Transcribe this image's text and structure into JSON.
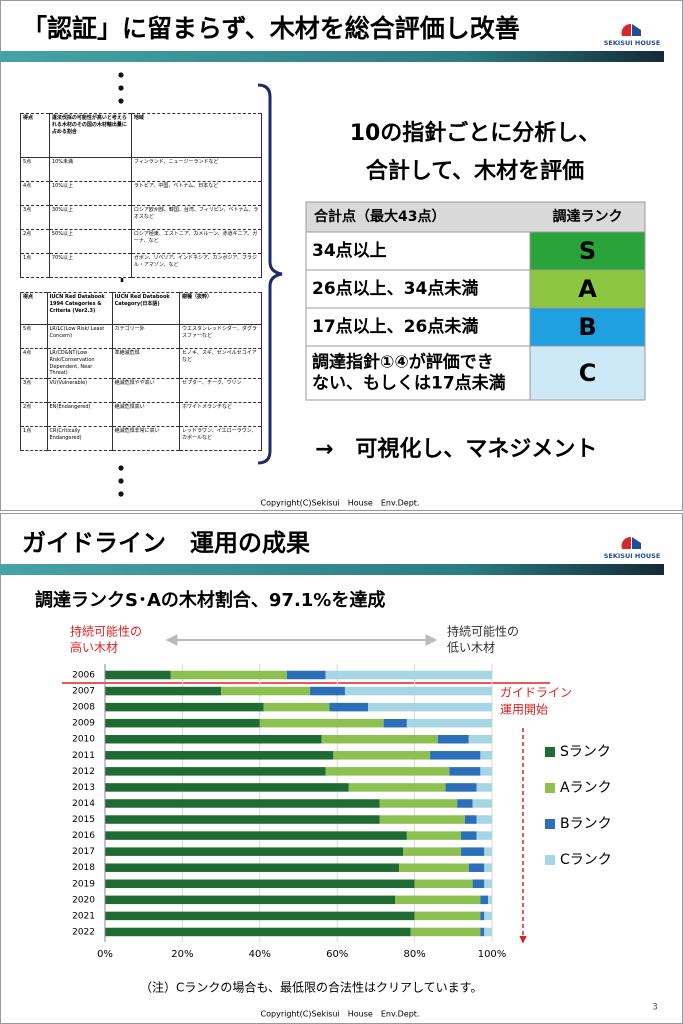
{
  "slide1": {
    "title": "「認証」に留まらず、木材を総合評価し改善",
    "logo": "SEKISUI HOUSE",
    "table1": {
      "header": [
        "得点",
        "違法伐採の可能性が高いと考えられる木材のその国の木材輸出量に占める割合",
        "地域"
      ],
      "rows": [
        [
          "5点",
          "10%未満",
          "フィンランド、ニュージーランドなど"
        ],
        [
          "4点",
          "10%以上",
          "ラトビア、中国、ベトナム、日本など"
        ],
        [
          "3点",
          "30%以上",
          "ロシア欧州部、韓国、台湾、フィリピン、ベトナム、ラオスなど"
        ],
        [
          "2点",
          "50%以上",
          "ロシア極東、エストニア、カメルーン、赤道ギニア、ガーナ、など"
        ],
        [
          "1点",
          "70%以上",
          "ガボン、リベリア、インドネシア、カンボジア、ブラジル・アマゾン、など"
        ]
      ]
    },
    "table2": {
      "header": [
        "得点",
        "IUCN Red Databook 1994 Categories & Criteria (Ver2.3)",
        "IUCN Red Databook Category(日本語)",
        "樹種（抜粋）"
      ],
      "rows": [
        [
          "5点",
          "LR/LC(Low Risk/ Least Concern)",
          "カテゴリー外",
          "ウエスタンレッドシダー、ダグラスファーなど"
        ],
        [
          "4点",
          "LR/CD&NT(Low Risk/Conservation Dependent, Near Threat)",
          "準絶滅危惧",
          "ヒノキ、スギ、センペルセコイアなど"
        ],
        [
          "3点",
          "VU(Vulnerable)",
          "絶滅危惧やや高い",
          "セプター、チーク、ウリン"
        ],
        [
          "2点",
          "EN(Endangered)",
          "絶滅危惧高い",
          "ホワイトメランチなど"
        ],
        [
          "1点",
          "CR(Critically Endangered)",
          "絶滅危惧非常に高い",
          "レッドラワン、イエローラワン、カポールなど"
        ]
      ]
    },
    "heading": [
      "10の指針ごとに分析し、",
      "合計して、木材を評価"
    ],
    "rank_table": {
      "header": [
        "合計点（最大43点）",
        "調達ランク"
      ],
      "rows": [
        {
          "condition": [
            "34点以上"
          ],
          "rank": "S",
          "color": "#2aa33b"
        },
        {
          "condition": [
            "26点以上、34点未満"
          ],
          "rank": "A",
          "color": "#8dc641"
        },
        {
          "condition": [
            "17点以上、26点未満"
          ],
          "rank": "B",
          "color": "#1fa0e0"
        },
        {
          "condition": [
            "調達指針①④が評価でき",
            "ない、もしくは17点未満"
          ],
          "rank": "C",
          "color": "#cde9f7"
        }
      ]
    },
    "conclusion": "→　可視化し、マネジメント",
    "copyright": "Copyright(C)Sekisui　House　Env.Dept."
  },
  "slide2": {
    "title": "ガイドライン　運用の成果",
    "logo": "SEKISUI HOUSE",
    "copyright": "Copyright(C)Sekisui　House　Env.Dept.",
    "page_number": "3"
  },
  "chart_data": {
    "type": "bar",
    "orientation": "horizontal",
    "stacked": true,
    "title": "調達ランクS･Aの木材割合、97.1%を達成",
    "categories": [
      "2006",
      "2007",
      "2008",
      "2009",
      "2010",
      "2011",
      "2012",
      "2013",
      "2014",
      "2015",
      "2016",
      "2017",
      "2018",
      "2019",
      "2020",
      "2021",
      "2022"
    ],
    "series": [
      {
        "name": "Sランク",
        "color": "#1e6b34",
        "values": [
          17,
          30,
          41,
          40,
          56,
          59,
          57,
          63,
          71,
          71,
          78,
          77,
          76,
          80,
          75,
          80,
          79
        ]
      },
      {
        "name": "Aランク",
        "color": "#8cc152",
        "values": [
          30,
          23,
          17,
          32,
          30,
          25,
          32,
          25,
          20,
          22,
          14,
          15,
          18,
          15,
          22,
          17,
          18
        ]
      },
      {
        "name": "Bランク",
        "color": "#2a6fb8",
        "values": [
          10,
          9,
          10,
          6,
          8,
          13,
          8,
          8,
          4,
          3,
          4,
          6,
          4,
          3,
          2,
          1,
          1
        ]
      },
      {
        "name": "Cランク",
        "color": "#a6d5e3",
        "values": [
          43,
          38,
          32,
          22,
          6,
          3,
          3,
          4,
          5,
          4,
          4,
          2,
          2,
          2,
          1,
          2,
          2
        ]
      }
    ],
    "xlim": [
      0,
      100
    ],
    "xticks": [
      {
        "value": 0,
        "label": "0%"
      },
      {
        "value": 20,
        "label": "20%"
      },
      {
        "value": 40,
        "label": "40%"
      },
      {
        "value": 60,
        "label": "60%"
      },
      {
        "value": 80,
        "label": "80%"
      },
      {
        "value": 100,
        "label": "100%"
      }
    ],
    "grid": true,
    "legend": "right",
    "annotations": {
      "left_label": [
        "持続可能性の",
        "高い木材"
      ],
      "right_label": [
        "持続可能性の",
        "低い木材"
      ],
      "start_note": [
        "ガイドライン",
        "運用開始"
      ]
    },
    "note": "（注）Cランクの場合も、最低限の合法性はクリアしています。"
  }
}
